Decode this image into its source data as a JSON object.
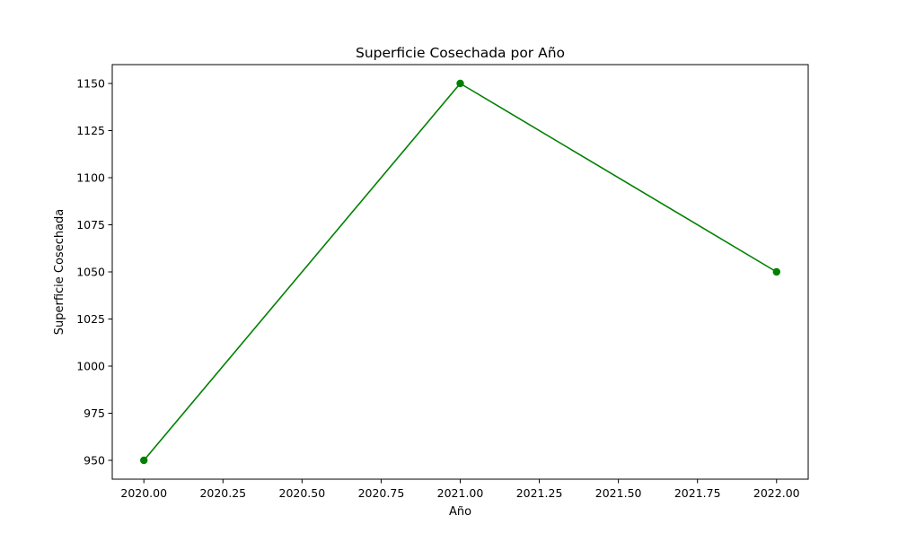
{
  "chart_data": {
    "type": "line",
    "title": "Superficie Cosechada por Año",
    "xlabel": "Año",
    "ylabel": "Superficie Cosechada",
    "x": [
      2020,
      2021,
      2022
    ],
    "series": [
      {
        "values": [
          950,
          1150,
          1050
        ],
        "color": "#008000",
        "marker": "circle"
      }
    ],
    "xlim": [
      1999.9,
      2022.1
    ],
    "ylim": [
      940,
      1160
    ],
    "xticks": [
      2020.0,
      2020.25,
      2020.5,
      2020.75,
      2021.0,
      2021.25,
      2021.5,
      2021.75,
      2022.0
    ],
    "xtick_labels": [
      "2020.00",
      "2020.25",
      "2020.50",
      "2020.75",
      "2021.00",
      "2021.25",
      "2021.50",
      "2021.75",
      "2022.00"
    ],
    "yticks": [
      950,
      975,
      1000,
      1025,
      1050,
      1075,
      1100,
      1125,
      1150
    ],
    "ytick_labels": [
      "950",
      "975",
      "1000",
      "1025",
      "1050",
      "1075",
      "1100",
      "1125",
      "1150"
    ],
    "grid": false,
    "legend": false
  }
}
